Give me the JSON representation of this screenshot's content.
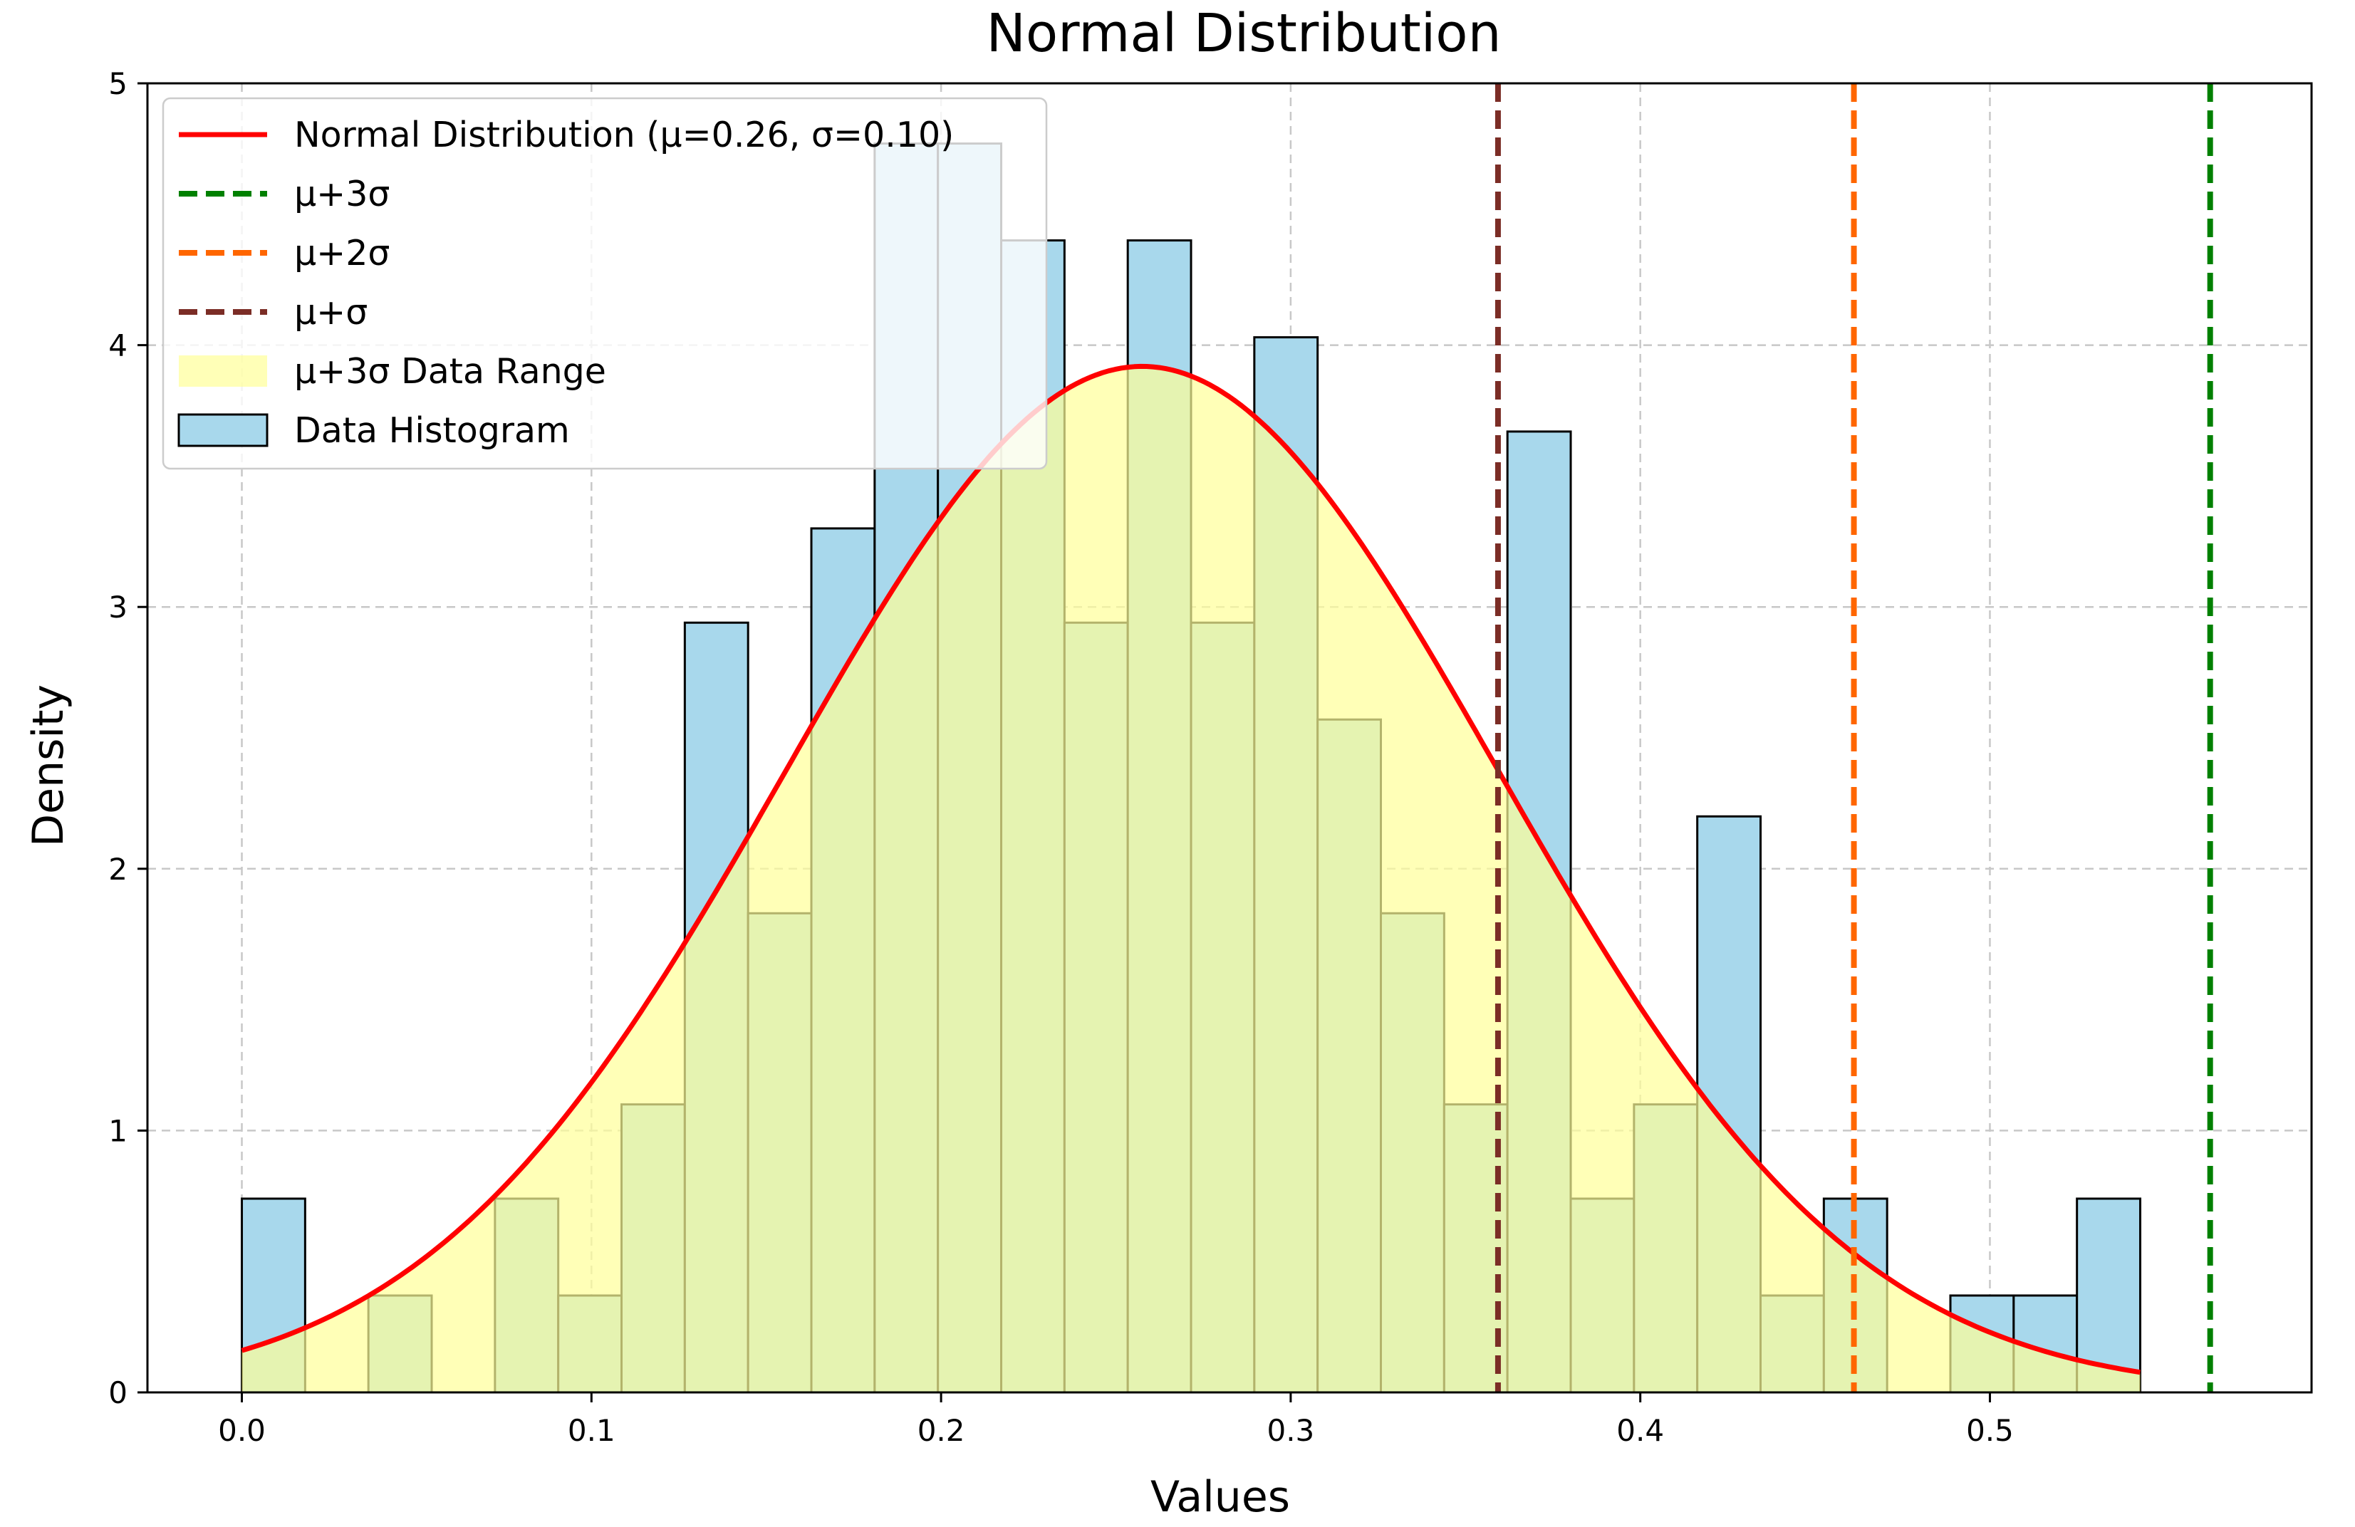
{
  "chart_data": {
    "type": "bar",
    "title": "Normal Distribution",
    "xlabel": "Values",
    "ylabel": "Density",
    "xlim": [
      -0.027,
      0.592
    ],
    "ylim": [
      0,
      5
    ],
    "xticks": [
      0.0,
      0.1,
      0.2,
      0.3,
      0.4,
      0.5
    ],
    "xtick_labels": [
      "0.0",
      "0.1",
      "0.2",
      "0.3",
      "0.4",
      "0.5"
    ],
    "yticks": [
      0,
      1,
      2,
      3,
      4,
      5
    ],
    "ytick_labels": [
      "0",
      "1",
      "2",
      "3",
      "4",
      "5"
    ],
    "grid": true,
    "legend_position": "top-left",
    "colors": {
      "histogram_fill": "#a8d8ec",
      "histogram_edge": "#000000",
      "range_fill": "#ffff99",
      "curve": "#ff0000",
      "mu_3sigma": "#008000",
      "mu_2sigma": "#ff6600",
      "mu_sigma": "#7b2d26"
    },
    "histogram": {
      "name": "Data Histogram",
      "bin_start": 0.0,
      "bin_width": 0.0181,
      "values": [
        0.74,
        0,
        0.37,
        0,
        0.74,
        0.37,
        1.1,
        2.94,
        1.83,
        3.3,
        4.77,
        4.77,
        4.4,
        2.94,
        4.4,
        2.94,
        4.03,
        2.57,
        1.83,
        1.1,
        3.67,
        0.74,
        1.1,
        2.2,
        0.37,
        0.74,
        0,
        0.37,
        0.37,
        0.74
      ]
    },
    "normal_curve": {
      "name": "Normal Distribution (μ=0.26, σ=0.10)",
      "mu": 0.2575,
      "sigma": 0.1018,
      "x_start": 0.0,
      "x_end": 0.543
    },
    "fill_range": {
      "name": "μ+3σ Data Range"
    },
    "vlines": [
      {
        "name": "μ+3σ",
        "x": 0.563,
        "color_key": "mu_3sigma"
      },
      {
        "name": "μ+2σ",
        "x": 0.4611,
        "color_key": "mu_2sigma"
      },
      {
        "name": "μ+σ",
        "x": 0.3593,
        "color_key": "mu_sigma"
      }
    ],
    "legend": [
      {
        "label": "Normal Distribution (μ=0.26, σ=0.10)",
        "kind": "line",
        "color_key": "curve"
      },
      {
        "label": "μ+3σ",
        "kind": "dashed",
        "color_key": "mu_3sigma"
      },
      {
        "label": "μ+2σ",
        "kind": "dashed",
        "color_key": "mu_2sigma"
      },
      {
        "label": "μ+σ",
        "kind": "dashed",
        "color_key": "mu_sigma"
      },
      {
        "label": "μ+3σ Data Range",
        "kind": "patch",
        "color_key": "range_fill"
      },
      {
        "label": "Data Histogram",
        "kind": "patch-edge",
        "color_key": "histogram_fill"
      }
    ]
  }
}
